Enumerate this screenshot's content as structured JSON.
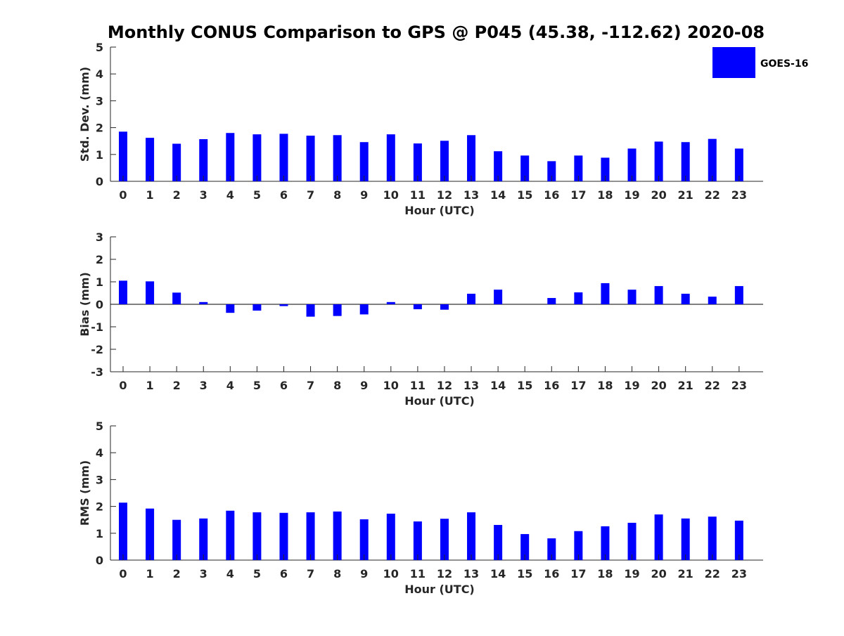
{
  "title": "Monthly CONUS Comparison to GPS @ P045 (45.38, -112.62) 2020-08",
  "legend": {
    "label": "GOES-16",
    "color": "#0000ff",
    "placement": "top-right"
  },
  "chart_data": [
    {
      "type": "bar",
      "title": "Monthly CONUS Comparison to GPS @ P045 (45.38, -112.62) 2020-08",
      "xlabel": "Hour (UTC)",
      "ylabel": "Std. Dev. (mm)",
      "ylim": [
        0,
        5
      ],
      "yticks": [
        "0",
        "1",
        "2",
        "3",
        "4",
        "5"
      ],
      "categories": [
        "0",
        "1",
        "2",
        "3",
        "4",
        "5",
        "6",
        "7",
        "8",
        "9",
        "10",
        "11",
        "12",
        "13",
        "14",
        "15",
        "16",
        "17",
        "18",
        "19",
        "20",
        "21",
        "22",
        "23"
      ],
      "series": [
        {
          "name": "GOES-16",
          "values": [
            1.85,
            1.62,
            1.4,
            1.57,
            1.8,
            1.75,
            1.77,
            1.7,
            1.72,
            1.46,
            1.75,
            1.41,
            1.51,
            1.72,
            1.12,
            0.96,
            0.75,
            0.96,
            0.88,
            1.22,
            1.48,
            1.46,
            1.58,
            1.22
          ]
        }
      ]
    },
    {
      "type": "bar",
      "xlabel": "Hour (UTC)",
      "ylabel": "Bias (mm)",
      "ylim": [
        -3,
        3
      ],
      "yticks": [
        "-3",
        "-2",
        "-1",
        "0",
        "1",
        "2",
        "3"
      ],
      "categories": [
        "0",
        "1",
        "2",
        "3",
        "4",
        "5",
        "6",
        "7",
        "8",
        "9",
        "10",
        "11",
        "12",
        "13",
        "14",
        "15",
        "16",
        "17",
        "18",
        "19",
        "20",
        "21",
        "22",
        "23"
      ],
      "series": [
        {
          "name": "GOES-16",
          "values": [
            1.05,
            1.02,
            0.52,
            0.1,
            -0.38,
            -0.28,
            -0.08,
            -0.55,
            -0.52,
            -0.45,
            0.1,
            -0.22,
            -0.24,
            0.47,
            0.65,
            0.0,
            0.28,
            0.53,
            0.94,
            0.65,
            0.81,
            0.47,
            0.34,
            0.81
          ]
        }
      ]
    },
    {
      "type": "bar",
      "xlabel": "Hour (UTC)",
      "ylabel": "RMS (mm)",
      "ylim": [
        0,
        5
      ],
      "yticks": [
        "0",
        "1",
        "2",
        "3",
        "4",
        "5"
      ],
      "categories": [
        "0",
        "1",
        "2",
        "3",
        "4",
        "5",
        "6",
        "7",
        "8",
        "9",
        "10",
        "11",
        "12",
        "13",
        "14",
        "15",
        "16",
        "17",
        "18",
        "19",
        "20",
        "21",
        "22",
        "23"
      ],
      "series": [
        {
          "name": "GOES-16",
          "values": [
            2.14,
            1.92,
            1.5,
            1.55,
            1.84,
            1.78,
            1.76,
            1.78,
            1.81,
            1.52,
            1.73,
            1.44,
            1.54,
            1.78,
            1.31,
            0.97,
            0.81,
            1.08,
            1.26,
            1.39,
            1.7,
            1.55,
            1.62,
            1.47
          ]
        }
      ]
    }
  ]
}
